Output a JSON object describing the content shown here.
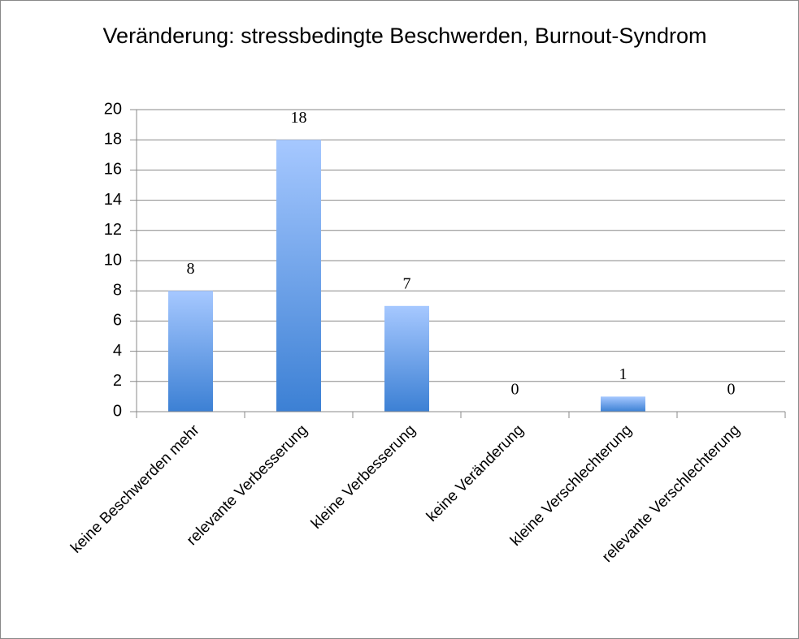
{
  "chart_data": {
    "type": "bar",
    "title": "Veränderung: stressbedingte Beschwerden, Burnout-Syndrom",
    "categories": [
      "keine Beschwerden mehr",
      "relevante Verbesserung",
      "kleine Verbesserung",
      "keine Veränderung",
      "kleine Verschlechterung",
      "relevante Verschlechterung"
    ],
    "values": [
      8,
      18,
      7,
      0,
      1,
      0
    ],
    "color": "#5b95e0",
    "ylim": [
      0,
      20
    ],
    "yticks": [
      0,
      2,
      4,
      6,
      8,
      10,
      12,
      14,
      16,
      18,
      20
    ],
    "grid": true
  }
}
